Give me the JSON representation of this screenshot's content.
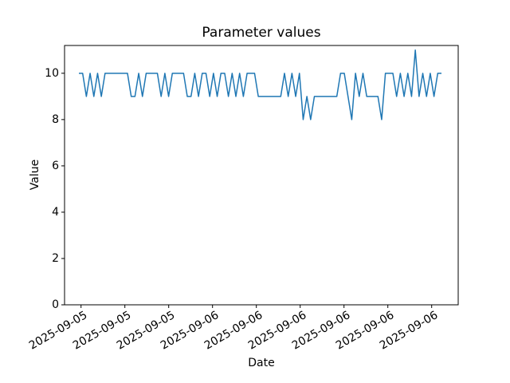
{
  "chart_data": {
    "type": "line",
    "title": "Parameter values",
    "xlabel": "Date",
    "ylabel": "Value",
    "ylim": [
      0,
      11.2
    ],
    "y_ticks": [
      0,
      2,
      4,
      6,
      8,
      10
    ],
    "x_tick_labels": [
      "2025-09-05",
      "2025-09-05",
      "2025-09-05",
      "2025-09-06",
      "2025-09-06",
      "2025-09-06",
      "2025-09-06",
      "2025-09-06",
      "2025-09-06"
    ],
    "x_tick_rotation_deg": 30,
    "legend": "none",
    "grid": false,
    "line_color": "#1f77b4",
    "axis_color": "#000000",
    "background_color": "#ffffff",
    "values": [
      10,
      10,
      9,
      10,
      9,
      10,
      9,
      10,
      10,
      10,
      10,
      10,
      10,
      10,
      9,
      9,
      10,
      9,
      10,
      10,
      10,
      10,
      9,
      10,
      9,
      10,
      10,
      10,
      10,
      9,
      9,
      10,
      9,
      10,
      10,
      9,
      10,
      9,
      10,
      10,
      9,
      10,
      9,
      10,
      9,
      10,
      10,
      10,
      9,
      9,
      9,
      9,
      9,
      9,
      9,
      10,
      9,
      10,
      9,
      10,
      8,
      9,
      8,
      9,
      9,
      9,
      9,
      9,
      9,
      9,
      10,
      10,
      9,
      8,
      10,
      9,
      10,
      9,
      9,
      9,
      9,
      8,
      10,
      10,
      10,
      9,
      10,
      9,
      10,
      9,
      11,
      9,
      10,
      9,
      10,
      9,
      10,
      10
    ]
  }
}
